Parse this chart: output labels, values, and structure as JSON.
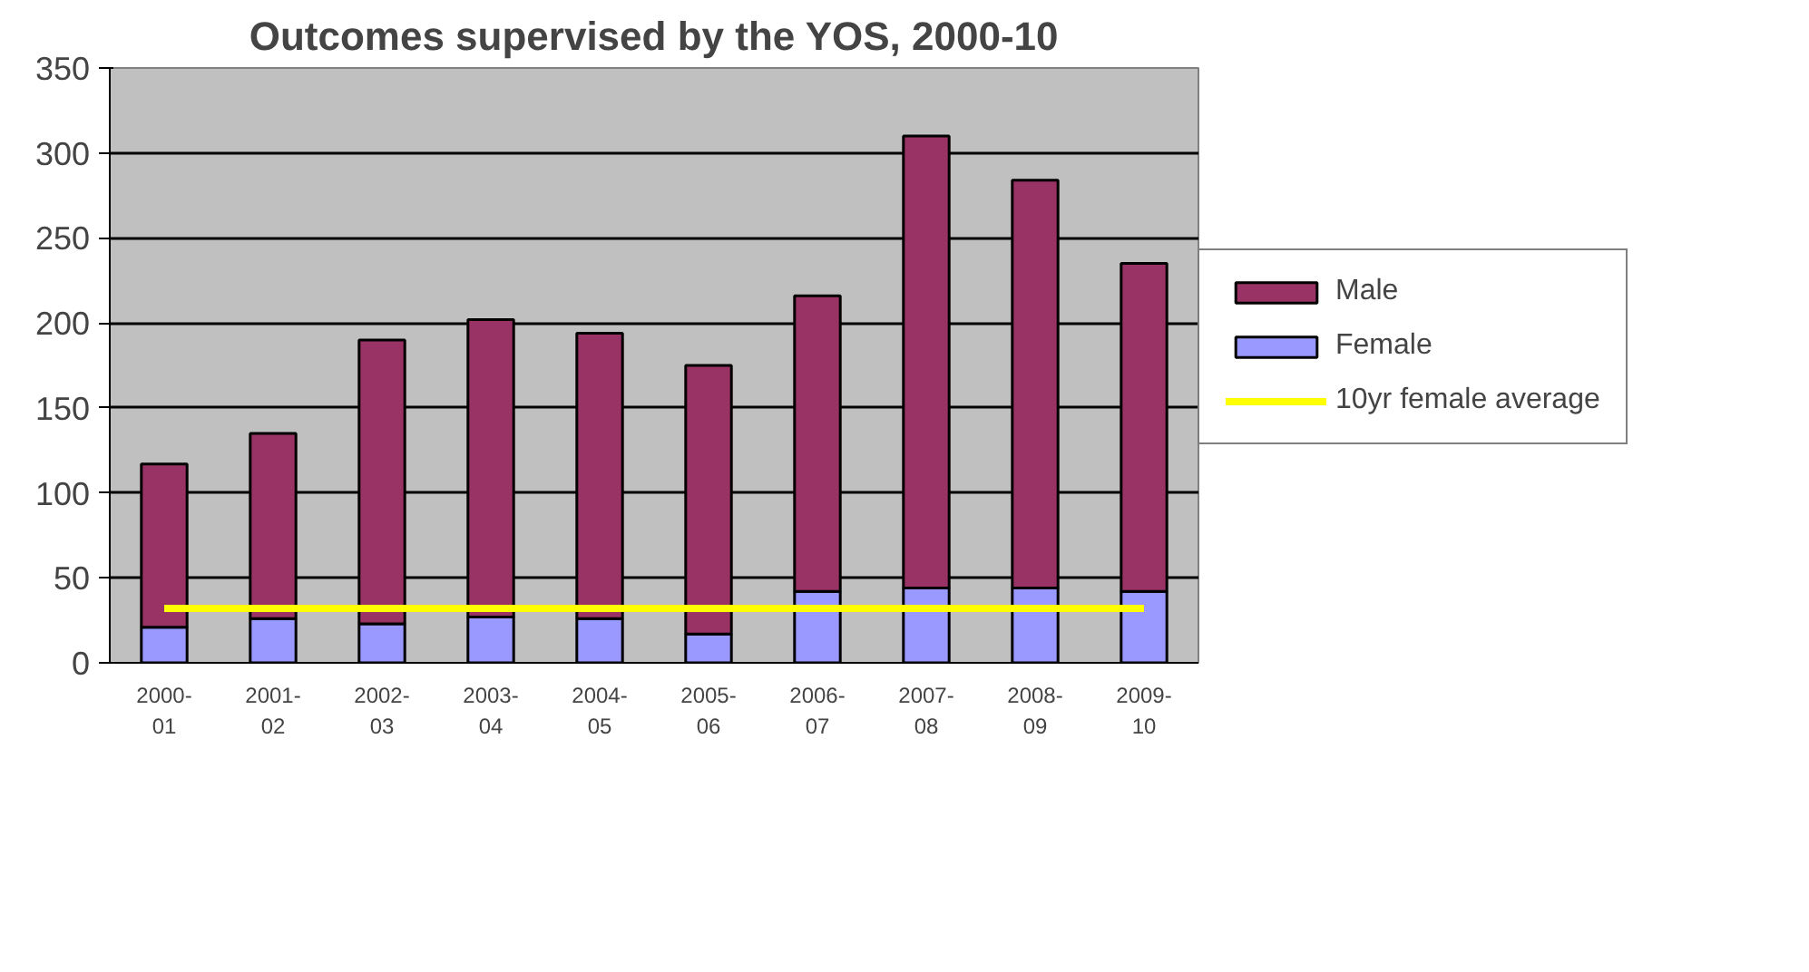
{
  "chart_data": {
    "type": "bar",
    "title": "Outcomes supervised by the YOS, 2000-10",
    "stacked": true,
    "categories": [
      "2000-01",
      "2001-02",
      "2002-03",
      "2003-04",
      "2004-05",
      "2005-06",
      "2006-07",
      "2007-08",
      "2008-09",
      "2009-10"
    ],
    "series": [
      {
        "name": "Female",
        "color": "#9999ff",
        "values": [
          21,
          26,
          23,
          27,
          26,
          17,
          42,
          44,
          44,
          42
        ]
      },
      {
        "name": "Male",
        "color": "#993366",
        "values": [
          96,
          109,
          167,
          175,
          168,
          158,
          174,
          266,
          240,
          193
        ]
      },
      {
        "name": "10yr female average",
        "type": "line",
        "color": "#ffff00",
        "values": [
          32,
          32,
          32,
          32,
          32,
          32,
          32,
          32,
          32,
          32
        ]
      }
    ],
    "ylim": [
      0,
      350
    ],
    "yticks": [
      0,
      50,
      100,
      150,
      200,
      250,
      300,
      350
    ],
    "grid": "y",
    "legend": "right"
  }
}
